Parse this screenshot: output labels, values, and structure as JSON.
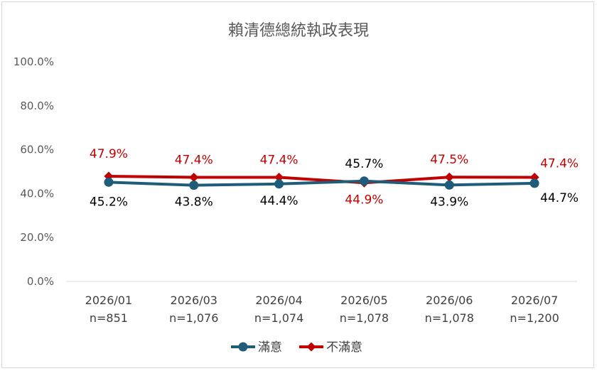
{
  "chart_data": {
    "type": "line",
    "title": "賴清德總統執政表現",
    "xlabel": "",
    "ylabel": "",
    "ylim": [
      0,
      100
    ],
    "y_ticks": [
      "0.0%",
      "20.0%",
      "40.0%",
      "60.0%",
      "80.0%",
      "100.0%"
    ],
    "categories": [
      "2026/01",
      "2026/03",
      "2026/04",
      "2026/05",
      "2026/06",
      "2026/07"
    ],
    "sample_sizes": [
      "n=851",
      "n=1,076",
      "n=1,074",
      "n=1,078",
      "n=1,078",
      "n=1,200"
    ],
    "grid": false,
    "legend_position": "bottom",
    "series": [
      {
        "name": "滿意",
        "color": "#1f5c7a",
        "marker": "circle",
        "values": [
          45.2,
          43.8,
          44.4,
          45.7,
          43.9,
          44.7
        ],
        "labels": [
          "45.2%",
          "43.8%",
          "44.4%",
          "45.7%",
          "43.9%",
          "44.7%"
        ]
      },
      {
        "name": "不滿意",
        "color": "#c00000",
        "marker": "diamond",
        "values": [
          47.9,
          47.4,
          47.4,
          44.9,
          47.5,
          47.4
        ],
        "labels": [
          "47.9%",
          "47.4%",
          "47.4%",
          "44.9%",
          "47.5%",
          "47.4%"
        ]
      }
    ]
  }
}
